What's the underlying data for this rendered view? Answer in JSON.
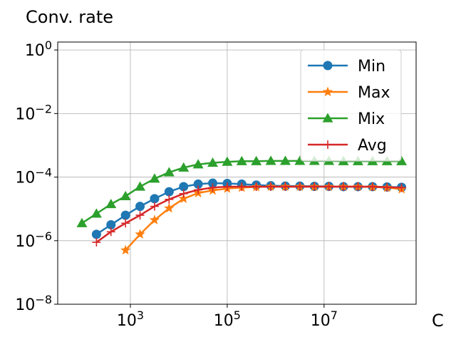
{
  "chart_data": {
    "type": "line",
    "title": "Conv. rate",
    "xlabel": "C",
    "ylabel": "",
    "x_scale": "log10",
    "y_scale": "log10",
    "xlim_exp": [
      1.5,
      8.9
    ],
    "ylim_exp": [
      -8,
      0.25
    ],
    "x_ticks": [
      {
        "base": "10",
        "exp": "3",
        "value_exp": 3
      },
      {
        "base": "10",
        "exp": "5",
        "value_exp": 5
      },
      {
        "base": "10",
        "exp": "7",
        "value_exp": 7
      }
    ],
    "y_ticks": [
      {
        "base": "10",
        "exp": "0",
        "value_exp": 0
      },
      {
        "base": "10",
        "exp": "−2",
        "value_exp": -2
      },
      {
        "base": "10",
        "exp": "−4",
        "value_exp": -4
      },
      {
        "base": "10",
        "exp": "−6",
        "value_exp": -6
      },
      {
        "base": "10",
        "exp": "−8",
        "value_exp": -8
      }
    ],
    "grid": true,
    "legend_position": "top-right",
    "series": [
      {
        "name": "Min",
        "color": "#1f77b4",
        "marker": "circle",
        "x_exp": [
          2.3,
          2.6,
          2.9,
          3.2,
          3.5,
          3.8,
          4.1,
          4.4,
          4.7,
          5.0,
          5.3,
          5.6,
          5.9,
          6.2,
          6.5,
          6.8,
          7.1,
          7.4,
          7.7,
          8.0,
          8.3,
          8.6
        ],
        "y_exp": [
          -5.8,
          -5.5,
          -5.2,
          -4.92,
          -4.68,
          -4.46,
          -4.3,
          -4.22,
          -4.19,
          -4.2,
          -4.22,
          -4.25,
          -4.27,
          -4.28,
          -4.28,
          -4.29,
          -4.29,
          -4.3,
          -4.3,
          -4.3,
          -4.31,
          -4.32
        ]
      },
      {
        "name": "Max",
        "color": "#ff7f0e",
        "marker": "star",
        "x_exp": [
          2.9,
          3.2,
          3.5,
          3.8,
          4.1,
          4.4,
          4.7,
          5.0,
          5.3,
          5.6,
          5.9,
          6.2,
          6.5,
          6.8,
          7.1,
          7.4,
          7.7,
          8.0,
          8.3,
          8.6
        ],
        "y_exp": [
          -6.3,
          -5.8,
          -5.35,
          -4.98,
          -4.68,
          -4.5,
          -4.42,
          -4.36,
          -4.33,
          -4.31,
          -4.3,
          -4.3,
          -4.3,
          -4.3,
          -4.3,
          -4.3,
          -4.3,
          -4.31,
          -4.33,
          -4.38
        ]
      },
      {
        "name": "Mix",
        "color": "#2ca02c",
        "marker": "triangle",
        "x_exp": [
          2.0,
          2.3,
          2.6,
          2.9,
          3.2,
          3.5,
          3.8,
          4.1,
          4.4,
          4.7,
          5.0,
          5.3,
          5.6,
          5.9,
          6.2,
          6.5,
          6.8,
          7.1,
          7.4,
          7.7,
          8.0,
          8.3,
          8.6
        ],
        "y_exp": [
          -5.45,
          -5.15,
          -4.85,
          -4.6,
          -4.3,
          -4.05,
          -3.85,
          -3.7,
          -3.6,
          -3.55,
          -3.52,
          -3.5,
          -3.5,
          -3.49,
          -3.49,
          -3.49,
          -3.49,
          -3.49,
          -3.5,
          -3.5,
          -3.5,
          -3.5,
          -3.5
        ]
      },
      {
        "name": "Avg",
        "color": "#d62728",
        "marker": "plus",
        "x_exp": [
          2.3,
          2.6,
          2.9,
          3.2,
          3.5,
          3.8,
          4.1,
          4.4,
          4.7,
          5.0,
          5.3,
          5.6,
          5.9,
          6.2,
          6.5,
          6.8,
          7.1,
          7.4,
          7.7,
          8.0,
          8.3,
          8.6
        ],
        "y_exp": [
          -6.05,
          -5.72,
          -5.45,
          -5.2,
          -4.92,
          -4.7,
          -4.52,
          -4.4,
          -4.33,
          -4.3,
          -4.3,
          -4.3,
          -4.3,
          -4.3,
          -4.3,
          -4.3,
          -4.3,
          -4.3,
          -4.3,
          -4.3,
          -4.32,
          -4.33
        ]
      }
    ]
  }
}
